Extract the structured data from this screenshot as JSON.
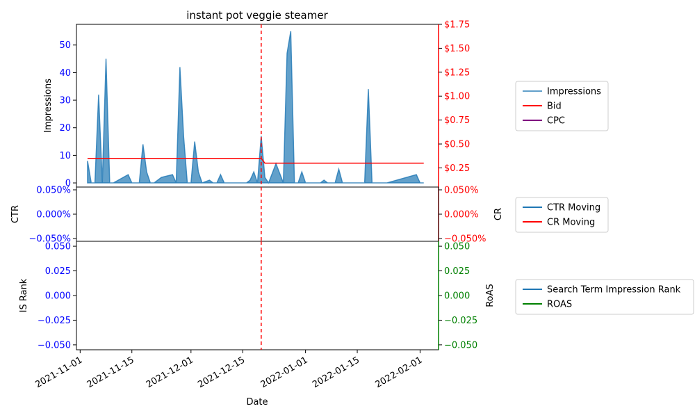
{
  "colors": {
    "impressions": "#1f77b4",
    "bid": "#ff0000",
    "cpc": "#800080",
    "ctr": "#1f77b4",
    "cr": "#ff0000",
    "is_rank": "#1f77b4",
    "roas": "#008000",
    "left_axis": "#0000ff",
    "right_top": "#ff0000",
    "right_bottom": "#008000",
    "event_line": "#ff0000"
  },
  "chart_data": {
    "type": "area",
    "title": "instant pot veggie steamer",
    "xlabel": "Date",
    "x_ticks": [
      "2021-11-01",
      "2021-11-15",
      "2021-12-01",
      "2021-12-15",
      "2022-01-01",
      "2022-01-15",
      "2022-02-01"
    ],
    "xlim": [
      "2021-10-31",
      "2022-02-06"
    ],
    "event_date": "2021-12-20",
    "panels": [
      {
        "id": "top",
        "ylabel_left": "Impressions",
        "ylabel_right": "",
        "ylim_left": [
          -1.5,
          57.5
        ],
        "yticks_left": [
          "0",
          "10",
          "20",
          "30",
          "40",
          "50"
        ],
        "ylim_right": [
          0.05,
          1.75
        ],
        "yticks_right": [
          "$0.25",
          "$0.50",
          "$0.75",
          "$1.00",
          "$1.25",
          "$1.50",
          "$1.75"
        ],
        "grid": false,
        "legend": [
          "Impressions",
          "Bid",
          "CPC"
        ],
        "series": [
          {
            "name": "Impressions",
            "type": "area",
            "axis": "left",
            "points": [
              [
                "2021-11-03",
                8
              ],
              [
                "2021-11-04",
                0
              ],
              [
                "2021-11-05",
                0
              ],
              [
                "2021-11-06",
                32
              ],
              [
                "2021-11-07",
                0
              ],
              [
                "2021-11-08",
                45
              ],
              [
                "2021-11-09",
                0
              ],
              [
                "2021-11-10",
                0
              ],
              [
                "2021-11-14",
                3
              ],
              [
                "2021-11-15",
                0
              ],
              [
                "2021-11-17",
                0
              ],
              [
                "2021-11-18",
                14
              ],
              [
                "2021-11-19",
                4
              ],
              [
                "2021-11-20",
                0
              ],
              [
                "2021-11-21",
                0
              ],
              [
                "2021-11-23",
                2
              ],
              [
                "2021-11-26",
                3
              ],
              [
                "2021-11-27",
                0
              ],
              [
                "2021-11-28",
                42
              ],
              [
                "2021-11-29",
                17
              ],
              [
                "2021-11-30",
                0
              ],
              [
                "2021-12-01",
                0
              ],
              [
                "2021-12-02",
                15
              ],
              [
                "2021-12-03",
                4
              ],
              [
                "2021-12-04",
                0
              ],
              [
                "2021-12-06",
                1
              ],
              [
                "2021-12-07",
                0
              ],
              [
                "2021-12-08",
                0
              ],
              [
                "2021-12-09",
                3
              ],
              [
                "2021-12-10",
                0
              ],
              [
                "2021-12-16",
                0
              ],
              [
                "2021-12-17",
                1
              ],
              [
                "2021-12-18",
                4
              ],
              [
                "2021-12-19",
                0
              ],
              [
                "2021-12-20",
                17
              ],
              [
                "2021-12-21",
                2
              ],
              [
                "2021-12-22",
                0
              ],
              [
                "2021-12-24",
                7
              ],
              [
                "2021-12-26",
                0
              ],
              [
                "2021-12-27",
                47
              ],
              [
                "2021-12-28",
                55
              ],
              [
                "2021-12-29",
                0
              ],
              [
                "2021-12-30",
                0
              ],
              [
                "2021-12-31",
                4
              ],
              [
                "2022-01-01",
                0
              ],
              [
                "2022-01-05",
                0
              ],
              [
                "2022-01-06",
                1
              ],
              [
                "2022-01-07",
                0
              ],
              [
                "2022-01-09",
                0
              ],
              [
                "2022-01-10",
                5
              ],
              [
                "2022-01-11",
                0
              ],
              [
                "2022-01-17",
                0
              ],
              [
                "2022-01-18",
                34
              ],
              [
                "2022-01-19",
                0
              ],
              [
                "2022-01-23",
                0
              ],
              [
                "2022-01-31",
                3
              ],
              [
                "2022-02-01",
                0
              ],
              [
                "2022-02-02",
                0
              ]
            ]
          },
          {
            "name": "Bid",
            "type": "line",
            "axis": "right",
            "points": [
              [
                "2021-11-03",
                0.35
              ],
              [
                "2021-12-20",
                0.35
              ],
              [
                "2021-12-21",
                0.3
              ],
              [
                "2022-02-02",
                0.3
              ]
            ]
          },
          {
            "name": "CPC",
            "type": "line",
            "axis": "right",
            "points": []
          }
        ]
      },
      {
        "id": "middle",
        "ylabel_left": "CTR",
        "ylabel_right": "CR",
        "yticks_left": [
          "0.050%",
          "0.000%",
          "−0.050%"
        ],
        "yticks_right": [
          "0.050%",
          "0.000%",
          "−0.050%"
        ],
        "legend": [
          "CTR Moving",
          "CR Moving"
        ],
        "series": [
          {
            "name": "CTR Moving",
            "points": []
          },
          {
            "name": "CR Moving",
            "points": []
          }
        ]
      },
      {
        "id": "bottom",
        "ylabel_left": "IS Rank",
        "ylabel_right": "RoAS",
        "ylim": [
          -0.055,
          0.055
        ],
        "yticks_left": [
          "0.050",
          "0.025",
          "0.000",
          "−0.025",
          "−0.050"
        ],
        "yticks_right": [
          "0.050",
          "0.025",
          "0.000",
          "−0.025",
          "−0.050"
        ],
        "legend": [
          "Search Term Impression Rank",
          "ROAS"
        ],
        "series": [
          {
            "name": "Search Term Impression Rank",
            "points": []
          },
          {
            "name": "ROAS",
            "points": []
          }
        ]
      }
    ]
  }
}
